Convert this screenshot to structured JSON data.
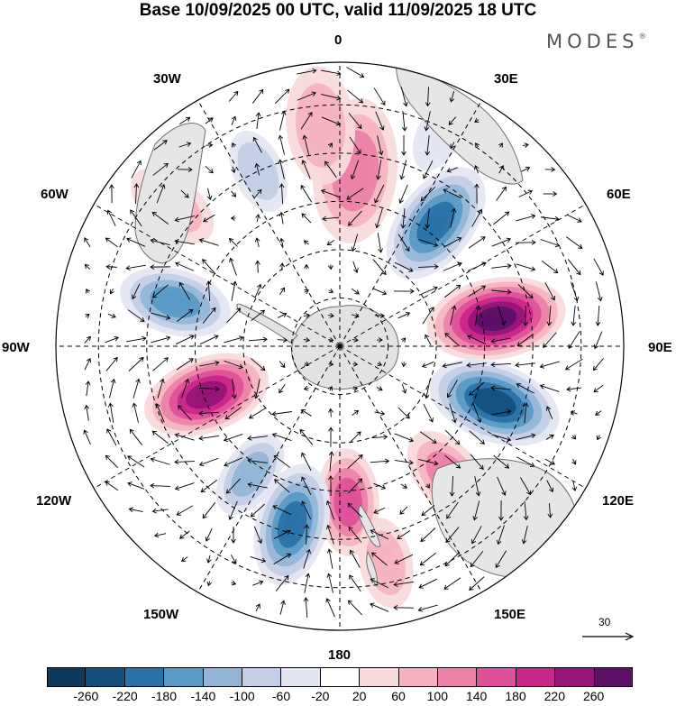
{
  "title": "Base 10/09/2025 00 UTC, valid 11/09/2025 18 UTC",
  "brand": "MODES",
  "brand_mark": "®",
  "longitude_labels": {
    "n0": "0",
    "n30e": "30E",
    "n60e": "60E",
    "n90e": "90E",
    "n120e": "120E",
    "n150e": "150E",
    "n180": "180",
    "n150w": "150W",
    "n120w": "120W",
    "n90w": "90W",
    "n60w": "60W",
    "n30w": "30W"
  },
  "reference_vector": {
    "value": "30"
  },
  "colorbar": {
    "ticks": [
      "-260",
      "-220",
      "-180",
      "-140",
      "-100",
      "-60",
      "-20",
      "20",
      "60",
      "100",
      "140",
      "180",
      "220",
      "260"
    ],
    "colors": [
      "#0d3a5c",
      "#14507f",
      "#2a73a8",
      "#5a9ac6",
      "#93b6d8",
      "#c3cfe6",
      "#e4e6f2",
      "#ffffff",
      "#f9dadb",
      "#f5b3c0",
      "#ec82a8",
      "#e0509a",
      "#c8268a",
      "#961479",
      "#5c1068"
    ]
  },
  "colors": {
    "coast": "#6f6f6f",
    "grid": "#000000",
    "land": "#d9d9d9"
  },
  "anomalies": [
    {
      "id": "pos-north",
      "lon": 5,
      "r": 0.62,
      "val": 120,
      "size": 0.27
    },
    {
      "id": "pos-north2",
      "lon": -5,
      "r": 0.78,
      "val": 80,
      "size": 0.22
    },
    {
      "id": "neg-n30e",
      "lon": 38,
      "r": 0.55,
      "val": -200,
      "size": 0.24
    },
    {
      "id": "pos-east",
      "lon": 80,
      "r": 0.56,
      "val": 260,
      "size": 0.26
    },
    {
      "id": "neg-east",
      "lon": 110,
      "r": 0.58,
      "val": -230,
      "size": 0.25
    },
    {
      "id": "pos-se",
      "lon": 140,
      "r": 0.6,
      "val": 100,
      "size": 0.2
    },
    {
      "id": "pos-south",
      "lon": 177,
      "r": 0.55,
      "val": 170,
      "size": 0.2
    },
    {
      "id": "neg-south",
      "lon": -165,
      "r": 0.65,
      "val": -200,
      "size": 0.23
    },
    {
      "id": "neg-sw",
      "lon": -145,
      "r": 0.55,
      "val": -100,
      "size": 0.17
    },
    {
      "id": "pos-west",
      "lon": -110,
      "r": 0.5,
      "val": 220,
      "size": 0.24
    },
    {
      "id": "neg-west",
      "lon": -75,
      "r": 0.6,
      "val": -170,
      "size": 0.21
    },
    {
      "id": "pos-nw",
      "lon": -50,
      "r": 0.77,
      "val": 90,
      "size": 0.18
    },
    {
      "id": "neg-nnw",
      "lon": -25,
      "r": 0.68,
      "val": -60,
      "size": 0.16
    },
    {
      "id": "pos-s2",
      "lon": 168,
      "r": 0.78,
      "val": 60,
      "size": 0.17
    },
    {
      "id": "neg-ne2",
      "lon": 25,
      "r": 0.82,
      "val": -40,
      "size": 0.14
    }
  ]
}
